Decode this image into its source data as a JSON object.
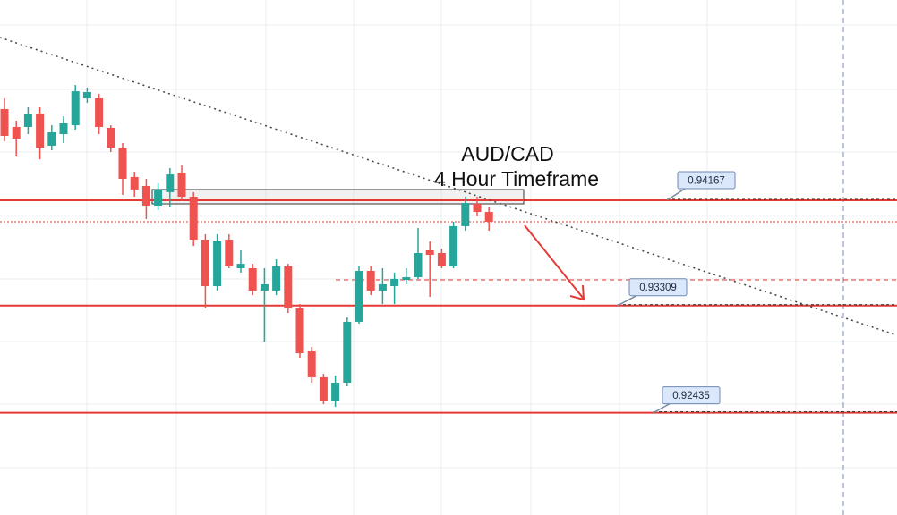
{
  "chart_data": {
    "type": "candlestick",
    "title": "AUD/CAD",
    "subtitle": "4 Hour Timeframe",
    "categories": [
      null,
      null,
      null,
      null,
      null,
      null,
      null,
      null,
      null,
      null,
      null,
      null,
      null,
      null,
      null,
      null,
      null,
      null,
      null,
      null,
      null,
      null,
      null,
      null,
      null,
      null,
      null,
      null,
      null,
      null,
      null,
      null,
      null,
      null,
      null,
      null,
      null,
      null,
      null,
      null,
      null,
      null
    ],
    "open": [
      0.94911,
      0.94765,
      0.94765,
      0.94874,
      0.94612,
      0.94706,
      0.94779,
      0.94998,
      0.94998,
      0.94758,
      0.94597,
      0.94357,
      0.94284,
      0.94123,
      0.94233,
      0.94393,
      0.94196,
      0.93846,
      0.93467,
      0.93846,
      0.93613,
      0.93613,
      0.93431,
      0.93431,
      0.93628,
      0.93285,
      0.92935,
      0.92724,
      0.92534,
      0.9268,
      0.93176,
      0.93591,
      0.93431,
      0.93467,
      0.93518,
      0.9354,
      0.93759,
      0.93737,
      0.93628,
      0.93956,
      0.94138,
      0.94072
    ],
    "high": [
      0.94998,
      0.94816,
      0.94925,
      0.94925,
      0.94779,
      0.94852,
      0.95107,
      0.95086,
      0.95035,
      0.94779,
      0.94634,
      0.944,
      0.94342,
      0.94306,
      0.94429,
      0.94451,
      0.94233,
      0.9389,
      0.9389,
      0.9389,
      0.93759,
      0.93649,
      0.93613,
      0.93686,
      0.93649,
      0.93321,
      0.92971,
      0.92753,
      0.92738,
      0.93212,
      0.93628,
      0.93628,
      0.93613,
      0.93577,
      0.93613,
      0.93941,
      0.93832,
      0.93773,
      0.93992,
      0.94196,
      0.94196,
      0.94109
    ],
    "low": [
      0.94648,
      0.94524,
      0.94706,
      0.94502,
      0.94575,
      0.94634,
      0.94743,
      0.94962,
      0.94706,
      0.94561,
      0.94211,
      0.94196,
      0.94014,
      0.94087,
      0.94109,
      0.9416,
      0.93795,
      0.93285,
      0.93431,
      0.93613,
      0.93577,
      0.93394,
      0.93015,
      0.93394,
      0.93248,
      0.92884,
      0.9268,
      0.92505,
      0.92483,
      0.92651,
      0.93161,
      0.93394,
      0.93321,
      0.93321,
      0.93482,
      0.93526,
      0.9338,
      0.93613,
      0.93613,
      0.93919,
      0.94036,
      0.93919
    ],
    "close": [
      0.94692,
      0.9467,
      0.94867,
      0.94597,
      0.94721,
      0.94794,
      0.95056,
      0.95049,
      0.94765,
      0.94597,
      0.94342,
      0.94255,
      0.94123,
      0.94255,
      0.94378,
      0.94196,
      0.93846,
      0.93467,
      0.93832,
      0.93628,
      0.93649,
      0.93431,
      0.93482,
      0.93628,
      0.93285,
      0.9292,
      0.92724,
      0.92534,
      0.9268,
      0.93176,
      0.93591,
      0.93431,
      0.93482,
      0.93526,
      0.9354,
      0.93737,
      0.93722,
      0.93628,
      0.93956,
      0.94145,
      0.94072,
      0.93992
    ],
    "up_color": "#26a69a",
    "down_color": "#ef5350",
    "level_color": "#e53935",
    "levels": [
      0.94167,
      0.93309,
      0.92435
    ],
    "ylim": [
      0.91601,
      0.958
    ]
  }
}
